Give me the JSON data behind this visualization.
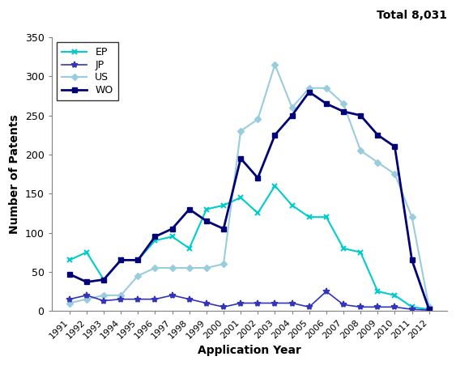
{
  "years": [
    1991,
    1992,
    1993,
    1994,
    1995,
    1996,
    1997,
    1998,
    1999,
    2000,
    2001,
    2002,
    2003,
    2004,
    2005,
    2006,
    2007,
    2008,
    2009,
    2010,
    2011,
    2012
  ],
  "EP": [
    65,
    75,
    40,
    65,
    65,
    90,
    95,
    80,
    130,
    135,
    145,
    125,
    160,
    135,
    120,
    120,
    80,
    75,
    25,
    20,
    5,
    2
  ],
  "JP": [
    15,
    20,
    13,
    15,
    15,
    15,
    20,
    15,
    10,
    5,
    10,
    10,
    10,
    10,
    5,
    25,
    8,
    5,
    5,
    5,
    2,
    1
  ],
  "US": [
    10,
    15,
    20,
    20,
    45,
    55,
    55,
    55,
    55,
    60,
    230,
    245,
    315,
    260,
    285,
    285,
    265,
    205,
    190,
    175,
    120,
    5
  ],
  "WO": [
    47,
    37,
    40,
    65,
    65,
    95,
    105,
    130,
    115,
    105,
    195,
    170,
    225,
    250,
    280,
    265,
    255,
    250,
    225,
    210,
    65,
    2
  ],
  "EP_color": "#00cccc",
  "JP_color": "#3333bb",
  "US_color": "#99ccdd",
  "WO_color": "#000077",
  "title_annotation": "Total 8,031",
  "xlabel": "Application Year",
  "ylabel": "Number of Patents",
  "ylim": [
    0,
    350
  ],
  "yticks": [
    0,
    50,
    100,
    150,
    200,
    250,
    300,
    350
  ]
}
